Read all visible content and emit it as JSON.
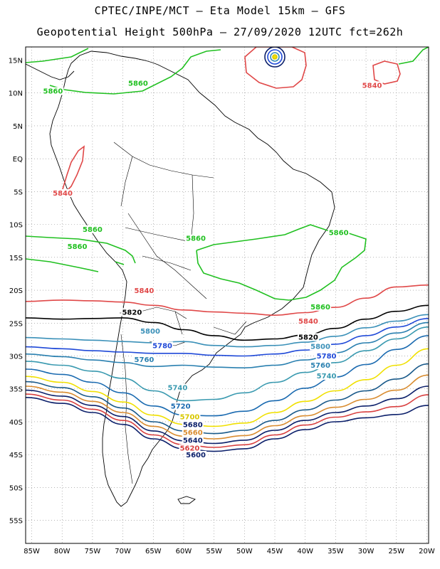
{
  "header": {
    "line1": "CPTEC/INPE/MCT – Eta Model 15km – GFS",
    "line2": "Geopotential Height 500hPa – 27/09/2020 12UTC fct=262h"
  },
  "map": {
    "lon_range": [
      -86,
      -19.7
    ],
    "lat_range": [
      -58.5,
      17
    ],
    "grid": true,
    "lon_ticks": [
      -85,
      -80,
      -75,
      -70,
      -65,
      -60,
      -55,
      -50,
      -45,
      -40,
      -35,
      -30,
      -25,
      -20
    ],
    "lon_tick_labels": [
      "85W",
      "80W",
      "75W",
      "70W",
      "65W",
      "60W",
      "55W",
      "50W",
      "45W",
      "40W",
      "35W",
      "30W",
      "25W",
      "20W"
    ],
    "lat_ticks": [
      15,
      10,
      5,
      0,
      -5,
      -10,
      -15,
      -20,
      -25,
      -30,
      -35,
      -40,
      -45,
      -50,
      -55
    ],
    "lat_tick_labels": [
      "15N",
      "10N",
      "5N",
      "EQ",
      "5S",
      "10S",
      "15S",
      "20S",
      "25S",
      "30S",
      "35S",
      "40S",
      "45S",
      "50S",
      "55S"
    ]
  },
  "contours": [
    {
      "level": "5600",
      "color": "#0b1f6a",
      "lats": [
        -36.3,
        -37.2,
        -38.6,
        -40.4,
        -42.6,
        -44.1,
        -44.5,
        -44.1,
        -42.6,
        -41.2,
        -40.0,
        -39.4,
        -38.9,
        -37.5
      ]
    },
    {
      "level": "5620",
      "color": "#d94040",
      "lats": [
        -35.8,
        -36.7,
        -38.1,
        -39.8,
        -42.0,
        -43.5,
        -43.9,
        -43.5,
        -42.0,
        -40.5,
        -39.3,
        -38.5,
        -37.7,
        -35.9
      ]
    },
    {
      "level": "5640",
      "color": "#0b1f6a",
      "lats": [
        -35.2,
        -36.1,
        -37.5,
        -39.2,
        -41.4,
        -42.9,
        -43.3,
        -42.8,
        -41.3,
        -39.8,
        -38.6,
        -37.6,
        -36.5,
        -34.6
      ]
    },
    {
      "level": "5660",
      "color": "#d98c30",
      "lats": [
        -34.6,
        -35.5,
        -36.9,
        -38.6,
        -40.7,
        -42.2,
        -42.6,
        -42.1,
        -40.6,
        -39.1,
        -37.8,
        -36.6,
        -35.2,
        -32.9
      ]
    },
    {
      "level": "5680",
      "color": "#1a5a8a",
      "lats": [
        -33.9,
        -34.8,
        -36.2,
        -37.9,
        -40.0,
        -41.4,
        -41.8,
        -41.3,
        -39.8,
        -38.2,
        -36.7,
        -35.3,
        -33.5,
        -31.2
      ]
    },
    {
      "level": "5700",
      "color": "#f0e000",
      "lats": [
        -33.1,
        -34.0,
        -35.4,
        -37.0,
        -39.0,
        -40.4,
        -40.7,
        -40.2,
        -38.6,
        -36.9,
        -35.3,
        -33.6,
        -31.4,
        -28.9
      ]
    },
    {
      "level": "5720",
      "color": "#1a6ab0",
      "lats": [
        -32.0,
        -32.8,
        -34.0,
        -35.6,
        -37.6,
        -39.0,
        -39.1,
        -38.4,
        -36.8,
        -34.9,
        -33.2,
        -31.3,
        -29.0,
        -26.9
      ]
    },
    {
      "level": "5740",
      "color": "#3a9ab0",
      "lats": [
        -30.8,
        -31.4,
        -32.3,
        -33.4,
        -35.3,
        -36.8,
        -36.6,
        -35.6,
        -34.0,
        -32.5,
        -31.0,
        -29.2,
        -27.4,
        -25.6
      ]
    },
    {
      "level": "5760",
      "color": "#2a80b0",
      "lats": [
        -29.7,
        -30.1,
        -30.6,
        -31.0,
        -31.6,
        -31.4,
        -31.7,
        -31.8,
        -31.4,
        -30.6,
        -29.5,
        -28.0,
        -26.5,
        -24.9
      ]
    },
    {
      "level": "5780",
      "color": "#1f49d8",
      "lats": [
        -28.6,
        -28.9,
        -29.2,
        -29.4,
        -29.6,
        -29.6,
        -29.9,
        -30.0,
        -29.7,
        -29.1,
        -28.2,
        -26.9,
        -25.6,
        -24.3
      ]
    },
    {
      "level": "5800",
      "color": "#3a90b8",
      "lats": [
        -27.2,
        -27.4,
        -27.6,
        -27.8,
        -28.0,
        -27.8,
        -28.4,
        -28.6,
        -28.4,
        -27.9,
        -27.0,
        -25.7,
        -24.7,
        -23.7
      ]
    },
    {
      "level": "5820",
      "color": "#000000",
      "lats": [
        -24.2,
        -24.4,
        -24.3,
        -24.2,
        -24.9,
        -26.0,
        -26.9,
        -27.6,
        -27.4,
        -26.8,
        -25.8,
        -24.4,
        -23.2,
        -22.3
      ]
    },
    {
      "level": "5840",
      "color": "#e04848",
      "lats": [
        -21.7,
        -21.5,
        -21.6,
        -21.8,
        -22.3,
        -23.0,
        -23.3,
        -23.5,
        -23.8,
        -23.4,
        -22.6,
        -21.2,
        -19.5,
        -19.2
      ]
    }
  ],
  "labels": [
    {
      "text": "5860",
      "color": "#20c020",
      "lon": -81.5,
      "lat": 9.9
    },
    {
      "text": "5860",
      "color": "#20c020",
      "lon": -67.5,
      "lat": 11.1
    },
    {
      "text": "5840",
      "color": "#e04848",
      "lon": -79.9,
      "lat": -5.6
    },
    {
      "text": "5860",
      "color": "#20c020",
      "lon": -75.0,
      "lat": -11.1
    },
    {
      "text": "5860",
      "color": "#20c020",
      "lon": -77.5,
      "lat": -13.7
    },
    {
      "text": "5860",
      "color": "#20c020",
      "lon": -58.0,
      "lat": -12.5
    },
    {
      "text": "5860",
      "color": "#20c020",
      "lon": -34.5,
      "lat": -11.6
    },
    {
      "text": "5860",
      "color": "#20c020",
      "lon": -37.5,
      "lat": -22.9
    },
    {
      "text": "5840",
      "color": "#e04848",
      "lon": -66.5,
      "lat": -20.4
    },
    {
      "text": "5840",
      "color": "#e04848",
      "lon": -29.0,
      "lat": 10.8
    },
    {
      "text": "5840",
      "color": "#e04848",
      "lon": -39.5,
      "lat": -25.1
    },
    {
      "text": "5820",
      "color": "#000000",
      "lon": -68.5,
      "lat": -23.7
    },
    {
      "text": "5820",
      "color": "#000000",
      "lon": -39.5,
      "lat": -27.5
    },
    {
      "text": "5800",
      "color": "#3a90b8",
      "lon": -65.5,
      "lat": -26.6
    },
    {
      "text": "5800",
      "color": "#3a90b8",
      "lon": -37.5,
      "lat": -28.9
    },
    {
      "text": "5780",
      "color": "#1f49d8",
      "lon": -63.5,
      "lat": -28.8
    },
    {
      "text": "5780",
      "color": "#1f49d8",
      "lon": -36.5,
      "lat": -30.4
    },
    {
      "text": "5760",
      "color": "#2a80b0",
      "lon": -66.5,
      "lat": -30.9
    },
    {
      "text": "5760",
      "color": "#2a80b0",
      "lon": -37.5,
      "lat": -31.8
    },
    {
      "text": "5740",
      "color": "#3a9ab0",
      "lon": -61.0,
      "lat": -35.2
    },
    {
      "text": "5740",
      "color": "#3a9ab0",
      "lon": -36.5,
      "lat": -33.4
    },
    {
      "text": "5720",
      "color": "#1a6ab0",
      "lon": -60.5,
      "lat": -38.0
    },
    {
      "text": "5700",
      "color": "#d8c800",
      "lon": -59.0,
      "lat": -39.6
    },
    {
      "text": "5680",
      "color": "#0b1f6a",
      "lon": -58.5,
      "lat": -40.8
    },
    {
      "text": "5660",
      "color": "#d98c30",
      "lon": -58.5,
      "lat": -42.0
    },
    {
      "text": "5640",
      "color": "#0b1f6a",
      "lon": -58.5,
      "lat": -43.2
    },
    {
      "text": "5620",
      "color": "#d94040",
      "lon": -59.0,
      "lat": -44.4
    },
    {
      "text": "5600",
      "color": "#0b1f6a",
      "lon": -58.0,
      "lat": -45.4
    }
  ]
}
